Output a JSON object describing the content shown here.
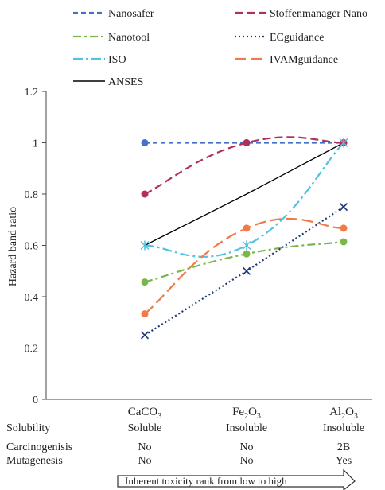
{
  "chart_data": {
    "type": "line",
    "title": "",
    "xlabel": "",
    "ylabel": "Hazard band ratio",
    "ylim": [
      0,
      1.2
    ],
    "yticks": [
      "0",
      "0.2",
      "0.4",
      "0.6",
      "0.8",
      "1",
      "1.2"
    ],
    "grid": false,
    "legend_position": "top",
    "categories": [
      {
        "formula": [
          "CaCO",
          "3"
        ],
        "solubility": "Soluble",
        "carcinogenisis": "No",
        "mutagenesis": "No"
      },
      {
        "formula": [
          "Fe",
          "2",
          "O",
          "3"
        ],
        "solubility": "Insoluble",
        "carcinogenisis": "No",
        "mutagenesis": "No"
      },
      {
        "formula": [
          "Al",
          "2",
          "O",
          "3"
        ],
        "solubility": "Insoluble",
        "carcinogenisis": "2B",
        "mutagenesis": "Yes"
      }
    ],
    "row_labels": {
      "solubility": "Solubility",
      "carcinogenisis": "Carcinogenisis",
      "mutagenesis": "Mutagenesis"
    },
    "arrow_label": "Inherent toxicity rank from low to high",
    "series": [
      {
        "name": "Nanosafer",
        "color": "#4472c4",
        "dash": "6,4",
        "marker": "circle",
        "smooth": false,
        "values": [
          1.0,
          1.0,
          1.0
        ]
      },
      {
        "name": "Stoffenmanager Nano",
        "color": "#b0305a",
        "dash": "10,5",
        "marker": "circle",
        "smooth": true,
        "values": [
          0.8,
          1.0,
          1.0
        ]
      },
      {
        "name": "Nanotool",
        "color": "#7ab648",
        "dash": "10,4,3,4",
        "marker": "circle",
        "smooth": true,
        "values": [
          0.457,
          0.567,
          0.614
        ]
      },
      {
        "name": "ECguidance",
        "color": "#1f3a78",
        "dash": "2,3",
        "marker": "x",
        "smooth": false,
        "values": [
          0.25,
          0.5,
          0.75
        ]
      },
      {
        "name": "ISO",
        "color": "#4fc3e0",
        "dash": "12,4,3,4",
        "marker": "star",
        "smooth": true,
        "values": [
          0.6,
          0.6,
          1.0
        ]
      },
      {
        "name": "IVAMguidance",
        "color": "#f07a4a",
        "dash": "14,6",
        "marker": "circle",
        "smooth": true,
        "values": [
          0.333,
          0.667,
          0.667
        ]
      },
      {
        "name": "ANSES",
        "color": "#000000",
        "dash": "",
        "marker": "none",
        "smooth": false,
        "values": [
          0.6,
          0.8,
          1.0
        ]
      }
    ]
  }
}
